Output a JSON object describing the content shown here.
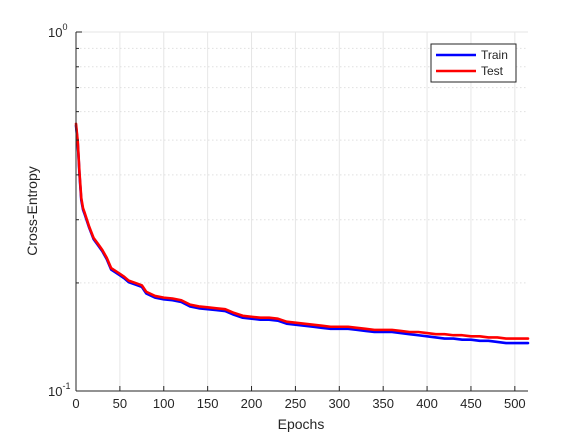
{
  "chart_data": {
    "type": "line",
    "title": "",
    "xlabel": "Epochs",
    "ylabel": "Cross-Entropy",
    "xlim": [
      0,
      515
    ],
    "ylim": [
      0.1,
      1.0
    ],
    "yscale": "log",
    "x_ticks": [
      0,
      50,
      100,
      150,
      200,
      250,
      300,
      350,
      400,
      450,
      500
    ],
    "y_major_ticks": [
      {
        "value": 1.0,
        "base": "10",
        "exp": "0"
      },
      {
        "value": 0.1,
        "base": "10",
        "exp": "-1"
      }
    ],
    "grid": true,
    "minor_grid_y": true,
    "legend_position": "top-right",
    "series": [
      {
        "name": "Train",
        "color": "#0000ff",
        "points": [
          [
            0,
            0.548
          ],
          [
            2,
            0.49
          ],
          [
            4,
            0.4
          ],
          [
            6,
            0.34
          ],
          [
            8,
            0.32
          ],
          [
            10,
            0.31
          ],
          [
            15,
            0.285
          ],
          [
            20,
            0.265
          ],
          [
            25,
            0.255
          ],
          [
            30,
            0.245
          ],
          [
            35,
            0.233
          ],
          [
            40,
            0.218
          ],
          [
            45,
            0.214
          ],
          [
            50,
            0.21
          ],
          [
            55,
            0.206
          ],
          [
            60,
            0.201
          ],
          [
            70,
            0.197
          ],
          [
            75,
            0.195
          ],
          [
            80,
            0.187
          ],
          [
            90,
            0.182
          ],
          [
            100,
            0.18
          ],
          [
            110,
            0.179
          ],
          [
            120,
            0.177
          ],
          [
            130,
            0.172
          ],
          [
            140,
            0.17
          ],
          [
            150,
            0.169
          ],
          [
            160,
            0.168
          ],
          [
            170,
            0.167
          ],
          [
            180,
            0.163
          ],
          [
            190,
            0.16
          ],
          [
            200,
            0.159
          ],
          [
            210,
            0.158
          ],
          [
            220,
            0.158
          ],
          [
            230,
            0.157
          ],
          [
            240,
            0.154
          ],
          [
            250,
            0.153
          ],
          [
            260,
            0.152
          ],
          [
            270,
            0.151
          ],
          [
            280,
            0.15
          ],
          [
            290,
            0.149
          ],
          [
            300,
            0.149
          ],
          [
            310,
            0.149
          ],
          [
            320,
            0.148
          ],
          [
            330,
            0.147
          ],
          [
            340,
            0.146
          ],
          [
            350,
            0.146
          ],
          [
            360,
            0.146
          ],
          [
            370,
            0.145
          ],
          [
            380,
            0.144
          ],
          [
            390,
            0.143
          ],
          [
            400,
            0.142
          ],
          [
            410,
            0.141
          ],
          [
            420,
            0.14
          ],
          [
            430,
            0.14
          ],
          [
            440,
            0.139
          ],
          [
            450,
            0.139
          ],
          [
            460,
            0.138
          ],
          [
            470,
            0.138
          ],
          [
            480,
            0.137
          ],
          [
            490,
            0.136
          ],
          [
            500,
            0.136
          ],
          [
            515,
            0.136
          ]
        ]
      },
      {
        "name": "Test",
        "color": "#ff0000",
        "points": [
          [
            0,
            0.555
          ],
          [
            2,
            0.495
          ],
          [
            4,
            0.405
          ],
          [
            6,
            0.345
          ],
          [
            8,
            0.323
          ],
          [
            10,
            0.313
          ],
          [
            15,
            0.287
          ],
          [
            20,
            0.267
          ],
          [
            25,
            0.257
          ],
          [
            30,
            0.247
          ],
          [
            35,
            0.235
          ],
          [
            40,
            0.22
          ],
          [
            45,
            0.216
          ],
          [
            50,
            0.212
          ],
          [
            55,
            0.208
          ],
          [
            60,
            0.203
          ],
          [
            70,
            0.199
          ],
          [
            75,
            0.197
          ],
          [
            80,
            0.189
          ],
          [
            90,
            0.184
          ],
          [
            100,
            0.182
          ],
          [
            110,
            0.181
          ],
          [
            120,
            0.179
          ],
          [
            130,
            0.174
          ],
          [
            140,
            0.172
          ],
          [
            150,
            0.171
          ],
          [
            160,
            0.17
          ],
          [
            170,
            0.169
          ],
          [
            180,
            0.165
          ],
          [
            190,
            0.162
          ],
          [
            200,
            0.161
          ],
          [
            210,
            0.16
          ],
          [
            220,
            0.16
          ],
          [
            230,
            0.159
          ],
          [
            240,
            0.156
          ],
          [
            250,
            0.155
          ],
          [
            260,
            0.154
          ],
          [
            270,
            0.153
          ],
          [
            280,
            0.152
          ],
          [
            290,
            0.151
          ],
          [
            300,
            0.151
          ],
          [
            310,
            0.151
          ],
          [
            320,
            0.15
          ],
          [
            330,
            0.149
          ],
          [
            340,
            0.148
          ],
          [
            350,
            0.148
          ],
          [
            360,
            0.148
          ],
          [
            370,
            0.147
          ],
          [
            380,
            0.146
          ],
          [
            390,
            0.146
          ],
          [
            400,
            0.145
          ],
          [
            410,
            0.144
          ],
          [
            420,
            0.144
          ],
          [
            430,
            0.143
          ],
          [
            440,
            0.143
          ],
          [
            450,
            0.142
          ],
          [
            460,
            0.142
          ],
          [
            470,
            0.141
          ],
          [
            480,
            0.141
          ],
          [
            490,
            0.14
          ],
          [
            500,
            0.14
          ],
          [
            515,
            0.14
          ]
        ]
      }
    ]
  }
}
